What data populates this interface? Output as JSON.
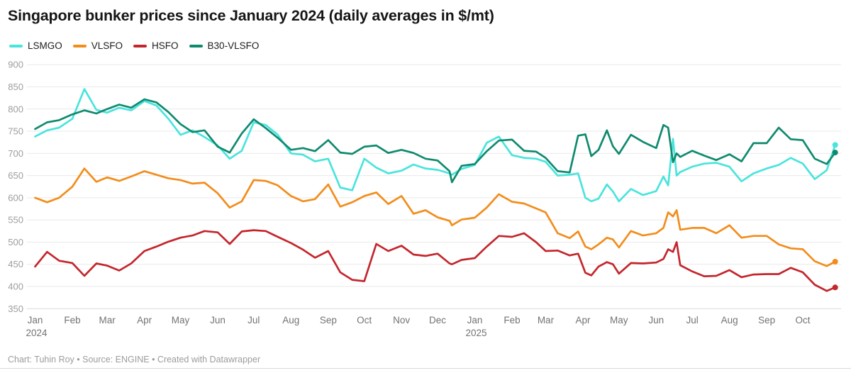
{
  "header": {
    "title": "Singapore bunker prices since January 2024 (daily averages in $/mt)"
  },
  "footer": {
    "text": "Chart: Tuhin Roy • Source: ENGINE • Created with Datawrapper"
  },
  "chart_data": {
    "type": "line",
    "title": "Singapore bunker prices since January 2024 (daily averages in $/mt)",
    "unit": "$/mt",
    "grid": "horizontal",
    "legend_position": "top-left",
    "ylim": [
      350,
      900
    ],
    "ytick_step": 50,
    "y_ticks": [
      900,
      850,
      800,
      750,
      700,
      650,
      600,
      550,
      500,
      450,
      400,
      350
    ],
    "x_axis": {
      "months": [
        {
          "label": "Jan",
          "year": "2024"
        },
        {
          "label": "Feb"
        },
        {
          "label": "Mar"
        },
        {
          "label": "Apr"
        },
        {
          "label": "May"
        },
        {
          "label": "Jun"
        },
        {
          "label": "Jul"
        },
        {
          "label": "Aug"
        },
        {
          "label": "Sep"
        },
        {
          "label": "Oct"
        },
        {
          "label": "Nov"
        },
        {
          "label": "Dec"
        },
        {
          "label": "Jan",
          "year": "2025"
        },
        {
          "label": "Feb"
        },
        {
          "label": "Mar"
        },
        {
          "label": "Apr"
        },
        {
          "label": "May"
        },
        {
          "label": "Jun"
        },
        {
          "label": "Jul"
        },
        {
          "label": "Aug"
        },
        {
          "label": "Sep"
        },
        {
          "label": "Oct"
        }
      ]
    },
    "x": [
      "2024-01-01",
      "2024-01-11",
      "2024-01-21",
      "2024-02-01",
      "2024-02-11",
      "2024-02-21",
      "2024-03-01",
      "2024-03-11",
      "2024-03-21",
      "2024-04-01",
      "2024-04-11",
      "2024-04-21",
      "2024-05-01",
      "2024-05-11",
      "2024-05-21",
      "2024-06-01",
      "2024-06-11",
      "2024-06-21",
      "2024-07-01",
      "2024-07-11",
      "2024-07-21",
      "2024-08-01",
      "2024-08-11",
      "2024-08-21",
      "2024-09-01",
      "2024-09-11",
      "2024-09-21",
      "2024-10-01",
      "2024-10-11",
      "2024-10-21",
      "2024-11-01",
      "2024-11-11",
      "2024-11-21",
      "2024-12-01",
      "2024-12-11",
      "2024-12-13",
      "2024-12-21",
      "2025-01-01",
      "2025-01-11",
      "2025-01-21",
      "2025-02-01",
      "2025-02-11",
      "2025-02-21",
      "2025-03-01",
      "2025-03-11",
      "2025-03-21",
      "2025-03-28",
      "2025-04-03",
      "2025-04-08",
      "2025-04-14",
      "2025-04-21",
      "2025-04-26",
      "2025-05-01",
      "2025-05-11",
      "2025-05-21",
      "2025-06-01",
      "2025-06-07",
      "2025-06-11",
      "2025-06-15",
      "2025-06-18",
      "2025-06-21",
      "2025-07-01",
      "2025-07-11",
      "2025-07-21",
      "2025-08-01",
      "2025-08-11",
      "2025-08-21",
      "2025-09-01",
      "2025-09-11",
      "2025-09-21",
      "2025-10-01",
      "2025-10-11",
      "2025-10-21",
      "2025-10-28"
    ],
    "series": [
      {
        "name": "LSMGO",
        "color": "#4ae4dd",
        "end_dot": true,
        "values": [
          738,
          752,
          758,
          778,
          845,
          798,
          792,
          803,
          797,
          818,
          808,
          778,
          742,
          752,
          737,
          718,
          688,
          706,
          770,
          764,
          742,
          700,
          697,
          682,
          688,
          623,
          617,
          688,
          668,
          655,
          661,
          675,
          666,
          663,
          655,
          652,
          665,
          674,
          724,
          738,
          696,
          690,
          688,
          681,
          650,
          652,
          655,
          600,
          592,
          598,
          630,
          614,
          592,
          620,
          606,
          615,
          648,
          628,
          733,
          650,
          658,
          670,
          677,
          679,
          670,
          637,
          655,
          666,
          674,
          690,
          677,
          642,
          662,
          719
        ]
      },
      {
        "name": "VLSFO",
        "color": "#f28d1c",
        "end_dot": true,
        "values": [
          600,
          590,
          600,
          625,
          666,
          636,
          646,
          638,
          648,
          660,
          652,
          644,
          640,
          632,
          634,
          610,
          578,
          592,
          640,
          638,
          628,
          604,
          592,
          597,
          630,
          580,
          590,
          604,
          612,
          586,
          604,
          564,
          572,
          556,
          548,
          538,
          551,
          555,
          578,
          608,
          591,
          587,
          576,
          567,
          520,
          509,
          524,
          490,
          484,
          495,
          510,
          506,
          488,
          525,
          515,
          520,
          532,
          567,
          558,
          572,
          528,
          532,
          532,
          520,
          538,
          510,
          514,
          514,
          495,
          486,
          484,
          457,
          446,
          456
        ]
      },
      {
        "name": "HSFO",
        "color": "#c4262d",
        "end_dot": true,
        "values": [
          445,
          478,
          458,
          453,
          424,
          452,
          447,
          436,
          452,
          480,
          490,
          501,
          510,
          515,
          525,
          522,
          496,
          524,
          527,
          525,
          512,
          498,
          483,
          465,
          480,
          432,
          415,
          412,
          496,
          480,
          492,
          472,
          469,
          474,
          452,
          450,
          460,
          464,
          490,
          514,
          512,
          520,
          500,
          480,
          481,
          470,
          474,
          431,
          425,
          445,
          455,
          450,
          429,
          453,
          452,
          454,
          462,
          484,
          478,
          500,
          448,
          434,
          423,
          424,
          437,
          421,
          427,
          428,
          428,
          442,
          432,
          404,
          390,
          398
        ]
      },
      {
        "name": "B30-VLSFO",
        "color": "#0f8a6e",
        "end_dot": true,
        "values": [
          755,
          770,
          775,
          788,
          797,
          790,
          800,
          810,
          803,
          822,
          815,
          793,
          766,
          748,
          752,
          715,
          702,
          745,
          777,
          757,
          735,
          708,
          712,
          705,
          730,
          702,
          699,
          715,
          718,
          701,
          708,
          701,
          688,
          684,
          660,
          635,
          672,
          676,
          705,
          729,
          731,
          706,
          704,
          690,
          660,
          657,
          740,
          743,
          694,
          708,
          752,
          716,
          699,
          742,
          726,
          712,
          764,
          758,
          680,
          700,
          692,
          706,
          695,
          685,
          698,
          682,
          723,
          723,
          758,
          732,
          730,
          688,
          676,
          702
        ]
      }
    ]
  }
}
